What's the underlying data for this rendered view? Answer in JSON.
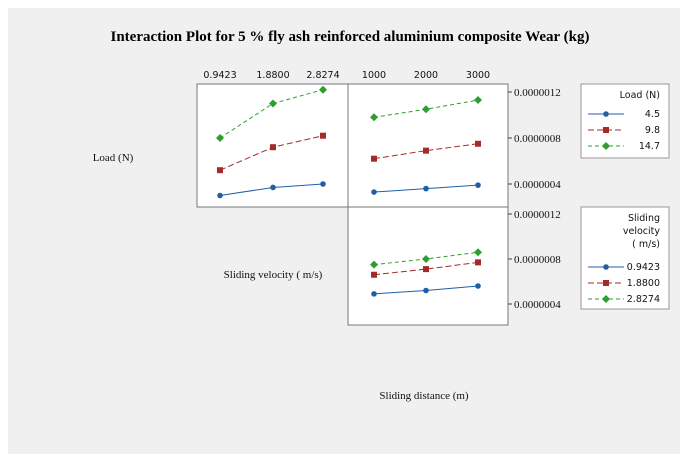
{
  "chart_data": {
    "type": "line",
    "title": "Interaction Plot for 5 % fly ash reinforced aluminium composite Wear (kg)",
    "factors": {
      "load": "Load (N)",
      "velocity": "Sliding velocity ( m/s)",
      "distance": "Sliding distance (m)"
    },
    "x_ticks": {
      "velocity": [
        "0.9423",
        "1.8800",
        "2.8274"
      ],
      "distance": [
        "1000",
        "2000",
        "3000"
      ]
    },
    "y_ticks": {
      "top": [
        "0.0000012",
        "0.0000008",
        "0.0000004"
      ],
      "bottom": [
        "0.0000012",
        "0.0000008",
        "0.0000004"
      ]
    },
    "ylim": [
      2.5e-07,
      1.29e-06
    ],
    "legends": [
      {
        "title": "Load (N)",
        "entries": [
          "4.5",
          "9.8",
          "14.7"
        ]
      },
      {
        "title_lines": [
          "Sliding",
          "velocity",
          "( m/s)"
        ],
        "entries": [
          "0.9423",
          "1.8800",
          "2.8274"
        ]
      }
    ],
    "colors": [
      "#1f5fa8",
      "#a52a2a",
      "#2e9e2e"
    ],
    "panels": [
      {
        "id": "load-by-velocity",
        "x_factor": "Sliding velocity ( m/s)",
        "x": [
          "0.9423",
          "1.8800",
          "2.8274"
        ],
        "series": [
          {
            "name": "4.5",
            "values": [
              3e-07,
              3.7e-07,
              4e-07
            ]
          },
          {
            "name": "9.8",
            "values": [
              5.2e-07,
              7.2e-07,
              8.2e-07
            ]
          },
          {
            "name": "14.7",
            "values": [
              8e-07,
              1.1e-06,
              1.22e-06
            ]
          }
        ]
      },
      {
        "id": "load-by-distance",
        "x_factor": "Sliding distance (m)",
        "x": [
          "1000",
          "2000",
          "3000"
        ],
        "series": [
          {
            "name": "4.5",
            "values": [
              3.3e-07,
              3.6e-07,
              3.9e-07
            ]
          },
          {
            "name": "9.8",
            "values": [
              6.2e-07,
              6.9e-07,
              7.5e-07
            ]
          },
          {
            "name": "14.7",
            "values": [
              9.8e-07,
              1.05e-06,
              1.13e-06
            ]
          }
        ]
      },
      {
        "id": "velocity-by-distance",
        "x_factor": "Sliding distance (m)",
        "x": [
          "1000",
          "2000",
          "3000"
        ],
        "series": [
          {
            "name": "0.9423",
            "values": [
              4.9e-07,
              5.2e-07,
              5.6e-07
            ]
          },
          {
            "name": "1.8800",
            "values": [
              6.6e-07,
              7.1e-07,
              7.7e-07
            ]
          },
          {
            "name": "2.8274",
            "values": [
              7.5e-07,
              8e-07,
              8.6e-07
            ]
          }
        ]
      }
    ]
  }
}
